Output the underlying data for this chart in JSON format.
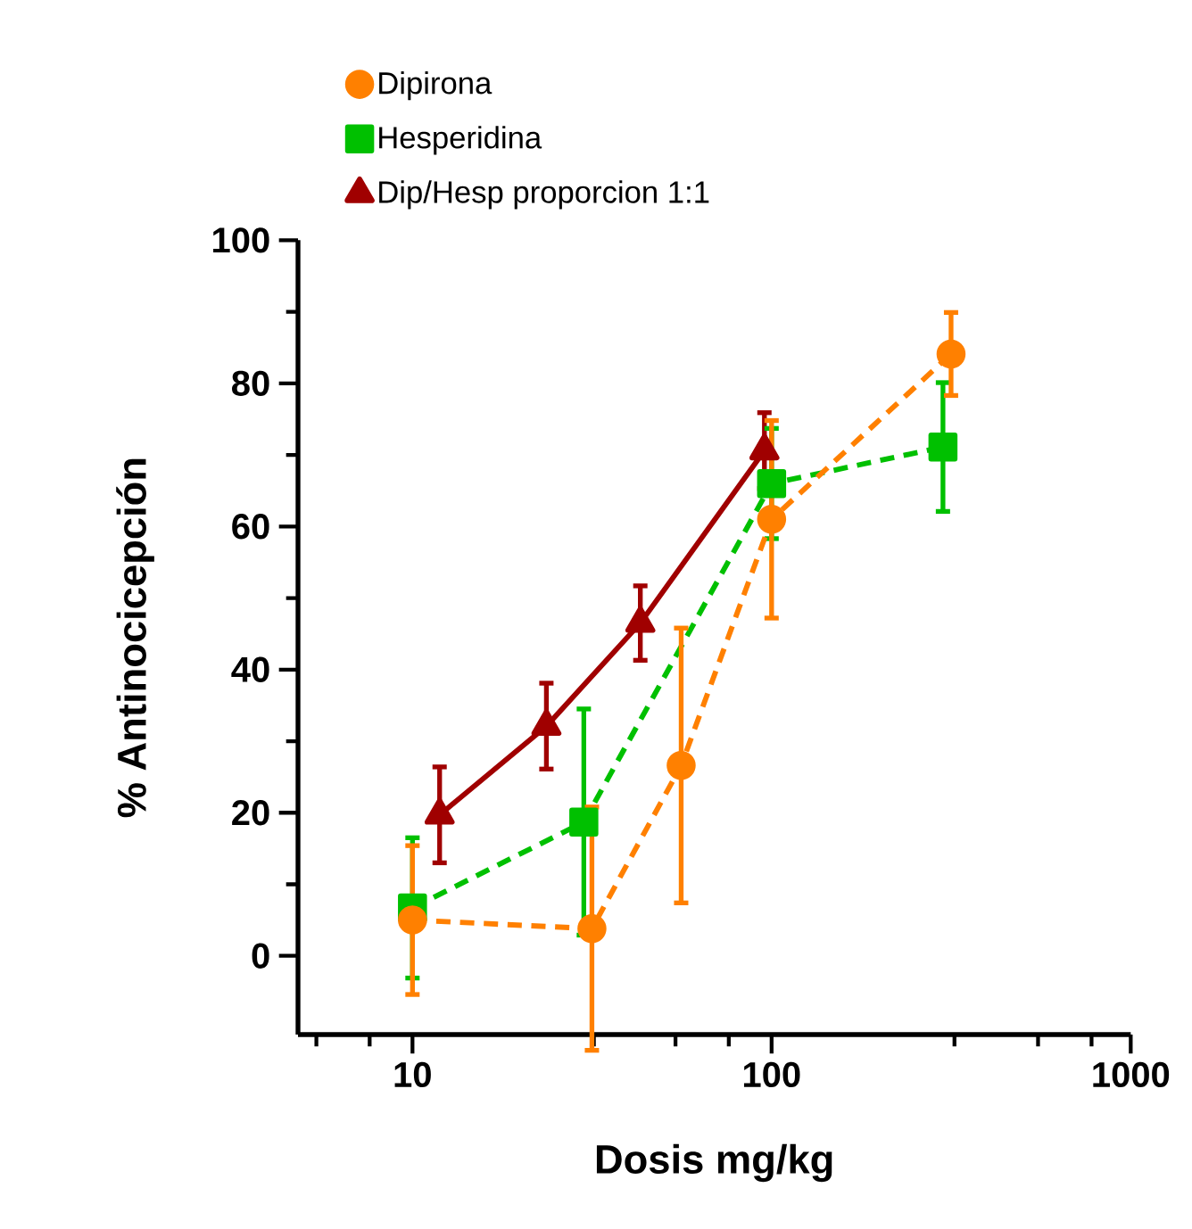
{
  "chart_data": {
    "type": "line",
    "xlabel": "Dosis mg/kg",
    "ylabel": "% Antinocicepción",
    "log": "x",
    "legend": "top",
    "xlim": [
      4.8,
      1000
    ],
    "ylim": [
      -11,
      100
    ],
    "xticks": [
      {
        "value": 5.4,
        "label": null
      },
      {
        "value": 7.6,
        "label": null
      },
      10,
      {
        "value": 32,
        "label": null
      },
      {
        "value": 54,
        "label": null
      },
      {
        "value": 76,
        "label": null
      },
      100,
      {
        "value": 323,
        "label": null
      },
      {
        "value": 552,
        "label": null
      },
      {
        "value": 778,
        "label": null
      },
      1000
    ],
    "yticks": [
      0,
      {
        "value": 10,
        "label": null
      },
      20,
      {
        "value": 30,
        "label": null
      },
      40,
      {
        "value": 50,
        "label": null
      },
      60,
      {
        "value": 70,
        "label": null
      },
      80,
      {
        "value": 90,
        "label": null
      },
      100
    ],
    "series": [
      {
        "name": "Dipirona",
        "color": "#ff8000",
        "marker": "circle",
        "line_style": "dashed",
        "x": [
          10,
          31.6,
          56,
          100,
          316
        ],
        "values": [
          5,
          3.8,
          26.6,
          61,
          84.1
        ],
        "errors": [
          10.4,
          17,
          19.2,
          13.8,
          5.8
        ]
      },
      {
        "name": "Hesperidina",
        "color": "#00c000",
        "marker": "square",
        "line_style": "dashed",
        "x": [
          10,
          30,
          100,
          300
        ],
        "values": [
          6.7,
          18.7,
          66,
          71.1
        ],
        "errors": [
          9.8,
          15.8,
          7.7,
          9
        ]
      },
      {
        "name": "Dip/Hesp proporcion 1:1",
        "color": "#a00000",
        "marker": "triangle",
        "line_style": "solid",
        "x": [
          11.9,
          23.6,
          43.1,
          95.5
        ],
        "values": [
          19.7,
          32.1,
          46.5,
          70.6
        ],
        "errors": [
          6.7,
          6,
          5.2,
          5.3
        ]
      }
    ]
  }
}
